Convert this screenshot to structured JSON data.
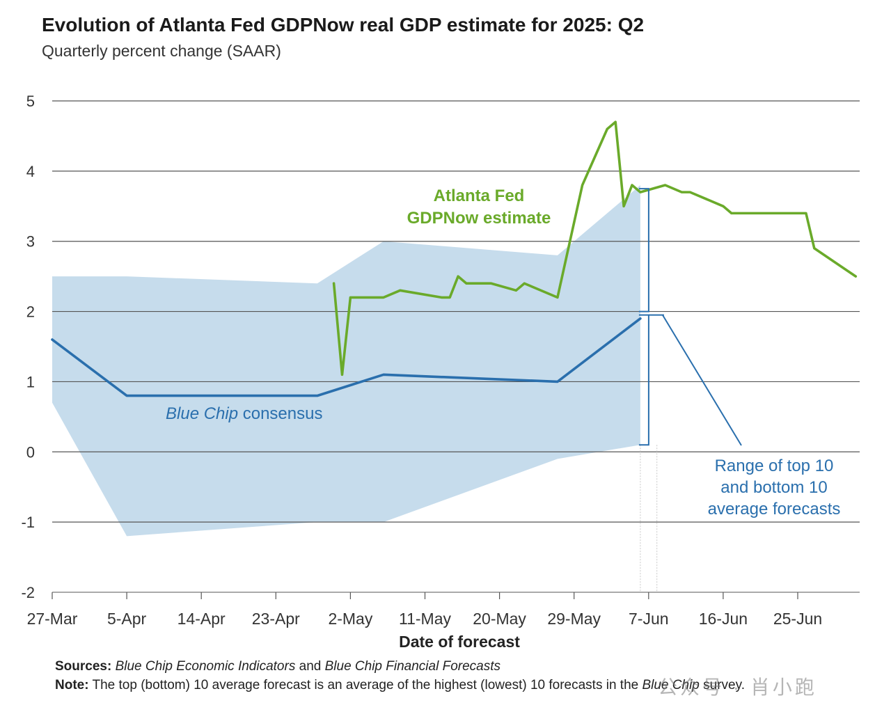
{
  "title": "Evolution of Atlanta Fed GDPNow real GDP estimate for 2025: Q2",
  "subtitle": "Quarterly percent change (SAAR)",
  "chart_data": {
    "type": "line",
    "title": "Evolution of Atlanta Fed GDPNow real GDP estimate for 2025: Q2",
    "subtitle": "Quarterly percent change (SAAR)",
    "xlabel": "Date of forecast",
    "ylabel": "",
    "x_tick_labels": [
      "27-Mar",
      "5-Apr",
      "14-Apr",
      "23-Apr",
      "2-May",
      "11-May",
      "20-May",
      "29-May",
      "7-Jun",
      "16-Jun",
      "25-Jun"
    ],
    "y_ticks": [
      5,
      4,
      3,
      2,
      1,
      0,
      -1,
      -2
    ],
    "ylim": [
      -2,
      5
    ],
    "grid": true,
    "series": [
      {
        "name": "Atlanta Fed GDPNow estimate",
        "color": "#6aaa2a",
        "points": [
          [
            "2025-04-30",
            2.4
          ],
          [
            "2025-05-01",
            1.1
          ],
          [
            "2025-05-02",
            2.2
          ],
          [
            "2025-05-06",
            2.2
          ],
          [
            "2025-05-08",
            2.3
          ],
          [
            "2025-05-13",
            2.2
          ],
          [
            "2025-05-14",
            2.2
          ],
          [
            "2025-05-15",
            2.5
          ],
          [
            "2025-05-16",
            2.4
          ],
          [
            "2025-05-19",
            2.4
          ],
          [
            "2025-05-22",
            2.3
          ],
          [
            "2025-05-23",
            2.4
          ],
          [
            "2025-05-27",
            2.2
          ],
          [
            "2025-05-30",
            3.8
          ],
          [
            "2025-06-02",
            4.6
          ],
          [
            "2025-06-03",
            4.7
          ],
          [
            "2025-06-04",
            3.5
          ],
          [
            "2025-06-05",
            3.8
          ],
          [
            "2025-06-06",
            3.7
          ],
          [
            "2025-06-09",
            3.8
          ],
          [
            "2025-06-11",
            3.7
          ],
          [
            "2025-06-12",
            3.7
          ],
          [
            "2025-06-16",
            3.5
          ],
          [
            "2025-06-17",
            3.4
          ],
          [
            "2025-06-26",
            3.4
          ],
          [
            "2025-06-27",
            2.9
          ],
          [
            "2025-07-02",
            2.5
          ]
        ]
      },
      {
        "name": "Blue Chip consensus",
        "color": "#2a6fad",
        "points": [
          [
            "2025-03-27",
            1.6
          ],
          [
            "2025-04-05",
            0.8
          ],
          [
            "2025-04-28",
            0.8
          ],
          [
            "2025-05-06",
            1.1
          ],
          [
            "2025-05-27",
            1.0
          ],
          [
            "2025-06-06",
            1.9
          ]
        ]
      },
      {
        "name": "Range of top 10 and bottom 10 average forecasts",
        "type": "area_range",
        "color": "#c6dcec",
        "upper": [
          [
            "2025-03-27",
            2.5
          ],
          [
            "2025-04-05",
            2.5
          ],
          [
            "2025-04-28",
            2.4
          ],
          [
            "2025-05-06",
            3.0
          ],
          [
            "2025-05-27",
            2.8
          ],
          [
            "2025-06-06",
            3.8
          ]
        ],
        "lower": [
          [
            "2025-03-27",
            0.7
          ],
          [
            "2025-04-05",
            -1.2
          ],
          [
            "2025-04-28",
            -1.0
          ],
          [
            "2025-05-06",
            -1.0
          ],
          [
            "2025-05-27",
            -0.1
          ],
          [
            "2025-06-06",
            0.1
          ]
        ]
      }
    ],
    "annotations": {
      "gdpnow_line1": "Atlanta Fed",
      "gdpnow_line2": "GDPNow estimate",
      "bluechip_italic": "Blue Chip",
      "bluechip_rest": " consensus",
      "range_line1": "Range of top 10",
      "range_line2": "and bottom 10",
      "range_line3": "average forecasts"
    }
  },
  "footer": {
    "sources_label": "Sources:",
    "sources_italic1": "Blue Chip Economic Indicators",
    "sources_and": " and ",
    "sources_italic2": "Blue Chip Financial Forecasts",
    "note_label": "Note:",
    "note_text": " The top (bottom) 10 average forecast is an average of the highest (lowest) 10 forecasts in the ",
    "note_italic": "Blue Chip",
    "note_end": " survey."
  },
  "watermark": "公众号 · 肖小跑",
  "colors": {
    "green": "#6aaa2a",
    "blue": "#2a6fad",
    "band": "#c6dcec",
    "grid": "#555555"
  }
}
